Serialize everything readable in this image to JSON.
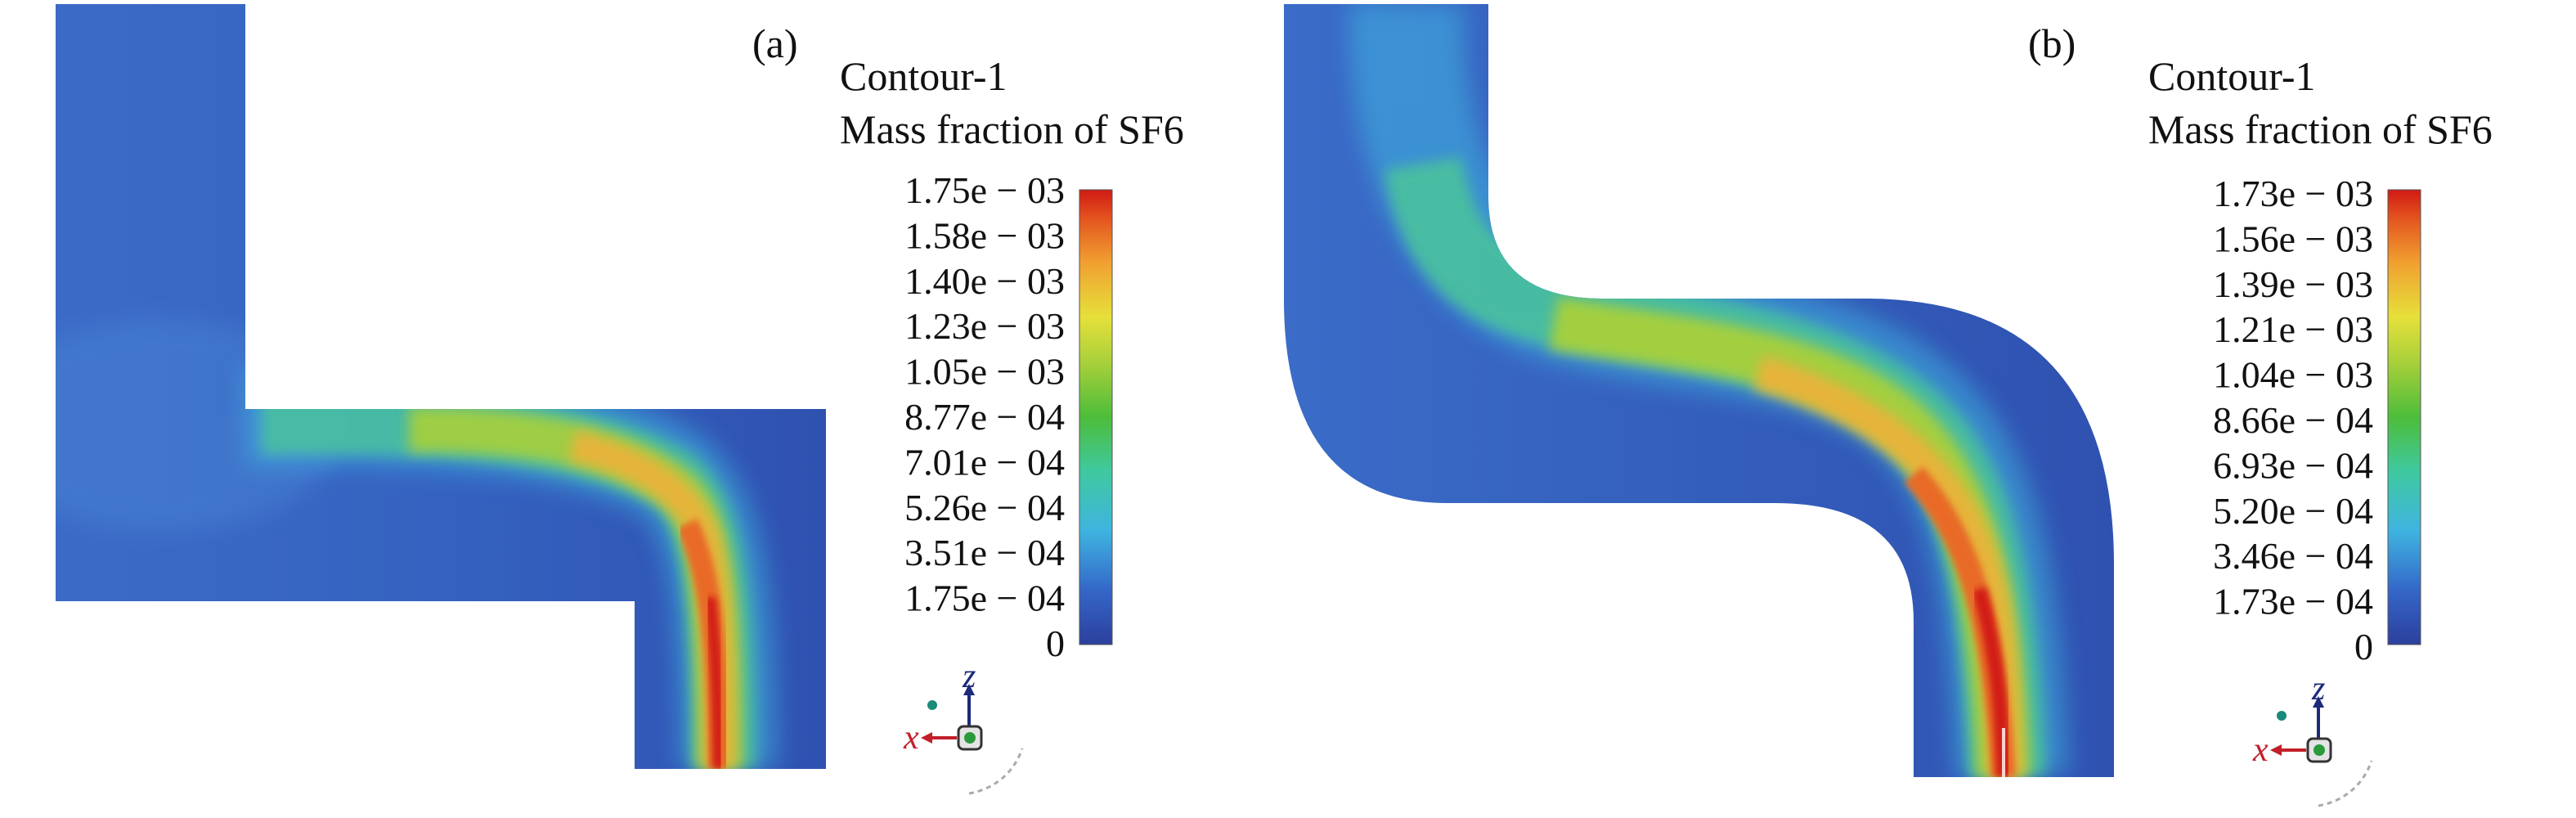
{
  "panels": [
    {
      "label": "(a)",
      "legend_title_1": "Contour-1",
      "legend_title_2": "Mass fraction of SF6",
      "ticks": [
        "1.75e − 03",
        "1.58e − 03",
        "1.40e − 03",
        "1.23e − 03",
        "1.05e − 03",
        "8.77e − 04",
        "7.01e − 04",
        "5.26e − 04",
        "3.51e − 04",
        "1.75e − 04",
        "0"
      ],
      "axis_z": "z",
      "axis_x": "x"
    },
    {
      "label": "(b)",
      "legend_title_1": "Contour-1",
      "legend_title_2": "Mass fraction of SF6",
      "ticks": [
        "1.73e − 03",
        "1.56e − 03",
        "1.39e − 03",
        "1.21e − 03",
        "1.04e − 03",
        "8.66e − 04",
        "6.93e − 04",
        "5.20e − 04",
        "3.46e − 04",
        "1.73e − 04",
        "0"
      ],
      "axis_z": "z",
      "axis_x": "x"
    }
  ],
  "colors": {
    "base_blue": "#2f51b0",
    "colormap": [
      "#2c3f9d",
      "#3a6fd0",
      "#3fb4e0",
      "#3fc99c",
      "#4fbf3a",
      "#b3d23a",
      "#e6e03a",
      "#f0a030",
      "#e85b20",
      "#d11a14"
    ]
  }
}
